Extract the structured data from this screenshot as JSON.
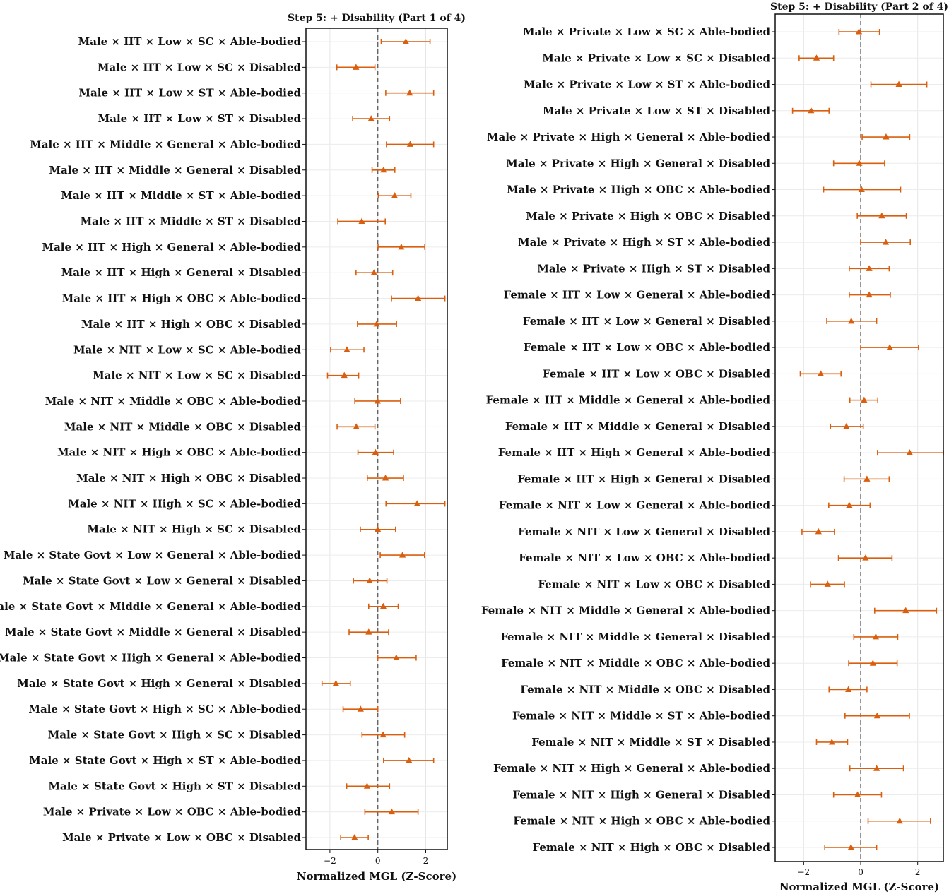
{
  "chart_data": [
    {
      "type": "scatter",
      "subtype": "forest-plot",
      "title": "Step 5: + Disability  (Part 1 of 4)",
      "xlabel": "Normalized MGL (Z-Score)",
      "xlim": [
        -3.0,
        2.9
      ],
      "xticks": [
        -2,
        0,
        2
      ],
      "reference_line": 0,
      "grid": true,
      "marker_color": "#d95f0e",
      "categories": [
        "Male × IIT × Low × SC × Able-bodied",
        "Male × IIT × Low × SC × Disabled",
        "Male × IIT × Low × ST × Able-bodied",
        "Male × IIT × Low × ST × Disabled",
        "Male × IIT × Middle × General × Able-bodied",
        "Male × IIT × Middle × General × Disabled",
        "Male × IIT × Middle × ST × Able-bodied",
        "Male × IIT × Middle × ST × Disabled",
        "Male × IIT × High × General × Able-bodied",
        "Male × IIT × High × General × Disabled",
        "Male × IIT × High × OBC × Able-bodied",
        "Male × IIT × High × OBC × Disabled",
        "Male × NIT × Low × SC × Able-bodied",
        "Male × NIT × Low × SC × Disabled",
        "Male × NIT × Middle × OBC × Able-bodied",
        "Male × NIT × Middle × OBC × Disabled",
        "Male × NIT × High × OBC × Able-bodied",
        "Male × NIT × High × OBC × Disabled",
        "Male × NIT × High × SC × Able-bodied",
        "Male × NIT × High × SC × Disabled",
        "Male × State Govt × Low × General × Able-bodied",
        "Male × State Govt × Low × General × Disabled",
        "Male × State Govt × Middle × General × Able-bodied",
        "Male × State Govt × Middle × General × Disabled",
        "Male × State Govt × High × General × Able-bodied",
        "Male × State Govt × High × General × Disabled",
        "Male × State Govt × High × SC × Able-bodied",
        "Male × State Govt × High × SC × Disabled",
        "Male × State Govt × High × ST × Able-bodied",
        "Male × State Govt × High × ST × Disabled",
        "Male × Private × Low × OBC × Able-bodied",
        "Male × Private × Low × OBC × Disabled"
      ],
      "estimates": [
        1.17,
        -0.91,
        1.33,
        -0.28,
        1.35,
        0.24,
        0.7,
        -0.67,
        0.98,
        -0.16,
        1.68,
        -0.05,
        -1.29,
        -1.4,
        -0.01,
        -0.9,
        -0.1,
        0.32,
        1.64,
        0.0,
        1.03,
        -0.34,
        0.23,
        -0.38,
        0.77,
        -1.75,
        -0.72,
        0.22,
        1.3,
        -0.45,
        0.58,
        -0.97
      ],
      "ci_low": [
        0.14,
        -1.71,
        0.33,
        -1.05,
        0.36,
        -0.24,
        0.02,
        -1.67,
        0.01,
        -0.91,
        0.57,
        -0.85,
        -1.97,
        -2.1,
        -0.96,
        -1.7,
        -0.83,
        -0.44,
        0.34,
        -0.73,
        0.1,
        -1.02,
        -0.38,
        -1.2,
        0.0,
        -2.33,
        -1.45,
        -0.66,
        0.24,
        -1.3,
        -0.54,
        -1.55
      ],
      "ci_high": [
        2.18,
        -0.12,
        2.33,
        0.49,
        2.33,
        0.71,
        1.38,
        0.31,
        1.96,
        0.62,
        2.8,
        0.78,
        -0.58,
        -0.8,
        0.95,
        -0.12,
        0.66,
        1.07,
        2.8,
        0.74,
        1.95,
        0.38,
        0.85,
        0.45,
        1.6,
        -1.15,
        0.0,
        1.12,
        2.33,
        0.49,
        1.68,
        -0.4
      ]
    },
    {
      "type": "scatter",
      "subtype": "forest-plot",
      "title": "Step 5: + Disability  (Part 2 of 4)",
      "xlabel": "Normalized MGL (Z-Score)",
      "xlim": [
        -3.0,
        2.9
      ],
      "xticks": [
        -2,
        0,
        2
      ],
      "reference_line": 0,
      "grid": true,
      "marker_color": "#d95f0e",
      "categories": [
        "Male × Private × Low × SC × Able-bodied",
        "Male × Private × Low × SC × Disabled",
        "Male × Private × Low × ST × Able-bodied",
        "Male × Private × Low × ST × Disabled",
        "Male × Private × High × General × Able-bodied",
        "Male × Private × High × General × Disabled",
        "Male × Private × High × OBC × Able-bodied",
        "Male × Private × High × OBC × Disabled",
        "Male × Private × High × ST × Able-bodied",
        "Male × Private × High × ST × Disabled",
        "Female × IIT × Low × General × Able-bodied",
        "Female × IIT × Low × General × Disabled",
        "Female × IIT × Low × OBC × Able-bodied",
        "Female × IIT × Low × OBC × Disabled",
        "Female × IIT × Middle × General × Able-bodied",
        "Female × IIT × Middle × General × Disabled",
        "Female × IIT × High × General × Able-bodied",
        "Female × IIT × High × General × Disabled",
        "Female × NIT × Low × General × Able-bodied",
        "Female × NIT × Low × General × Disabled",
        "Female × NIT × Low × OBC × Able-bodied",
        "Female × NIT × Low × OBC × Disabled",
        "Female × NIT × Middle × General × Able-bodied",
        "Female × NIT × Middle × General × Disabled",
        "Female × NIT × Middle × OBC × Able-bodied",
        "Female × NIT × Middle × OBC × Disabled",
        "Female × NIT × Middle × ST × Able-bodied",
        "Female × NIT × Middle × ST × Disabled",
        "Female × NIT × High × General × Able-bodied",
        "Female × NIT × High × General × Disabled",
        "Female × NIT × High × OBC × Able-bodied",
        "Female × NIT × High × OBC × Disabled"
      ],
      "estimates": [
        -0.06,
        -1.55,
        1.34,
        -1.74,
        0.89,
        -0.05,
        0.03,
        0.74,
        0.88,
        0.3,
        0.3,
        -0.33,
        1.02,
        -1.4,
        0.12,
        -0.5,
        1.72,
        0.22,
        -0.4,
        -1.48,
        0.17,
        -1.16,
        1.58,
        0.53,
        0.43,
        -0.43,
        0.58,
        -1.01,
        0.56,
        -0.11,
        1.37,
        -0.34
      ],
      "ci_low": [
        -0.76,
        -2.16,
        0.36,
        -2.39,
        0.05,
        -0.95,
        -1.3,
        -0.12,
        0.0,
        -0.4,
        -0.4,
        -1.19,
        0.0,
        -2.12,
        -0.38,
        -1.06,
        0.59,
        -0.58,
        -1.12,
        -2.06,
        -0.78,
        -1.76,
        0.49,
        -0.24,
        -0.42,
        -1.11,
        -0.55,
        -1.55,
        -0.38,
        -0.95,
        0.26,
        -1.26
      ],
      "ci_high": [
        0.66,
        -0.95,
        2.32,
        -1.11,
        1.72,
        0.84,
        1.4,
        1.6,
        1.74,
        1.0,
        1.04,
        0.56,
        2.03,
        -0.69,
        0.6,
        0.09,
        2.9,
        1.0,
        0.33,
        -0.92,
        1.1,
        -0.57,
        2.66,
        1.3,
        1.28,
        0.22,
        1.71,
        -0.46,
        1.5,
        0.73,
        2.45,
        0.56
      ]
    }
  ]
}
